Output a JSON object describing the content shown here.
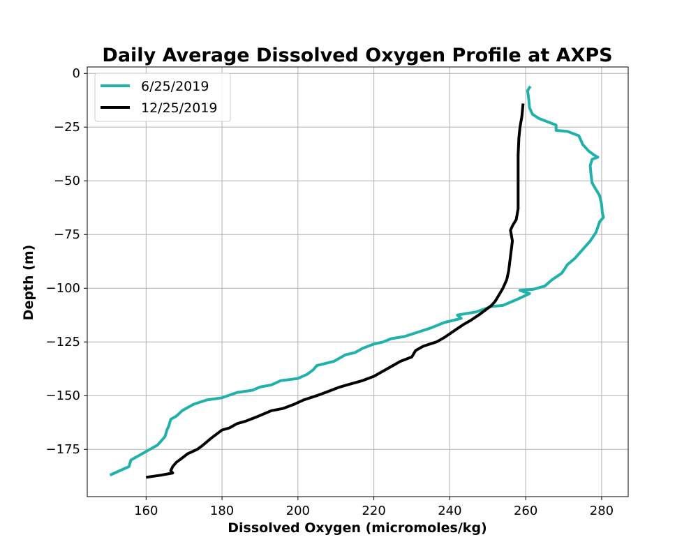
{
  "chart_data": {
    "type": "line",
    "title": "Daily Average Dissolved Oxygen Profile at AXPS",
    "xlabel": "Dissolved Oxygen (micromoles/kg)",
    "ylabel": "Depth (m)",
    "xlim": [
      144.5,
      287.0
    ],
    "ylim": [
      -197.0,
      3.0
    ],
    "xticks": [
      160,
      180,
      200,
      220,
      240,
      260,
      280
    ],
    "yticks": [
      0,
      -25,
      -50,
      -75,
      -100,
      -125,
      -150,
      -175
    ],
    "ytick_labels": [
      "0",
      "−25",
      "−50",
      "−75",
      "−100",
      "−125",
      "−150",
      "−175"
    ],
    "grid": true,
    "legend_position": "top-left",
    "series": [
      {
        "name": "6/25/2019",
        "color": "#20b2aa",
        "points": [
          [
            261.2,
            -6
          ],
          [
            260.5,
            -8
          ],
          [
            260.8,
            -12
          ],
          [
            261.0,
            -16
          ],
          [
            261.8,
            -19
          ],
          [
            263.5,
            -21
          ],
          [
            266.5,
            -23
          ],
          [
            268.0,
            -24
          ],
          [
            268.0,
            -26.5
          ],
          [
            271.0,
            -27
          ],
          [
            274.0,
            -29
          ],
          [
            275.0,
            -33
          ],
          [
            276.5,
            -36
          ],
          [
            278.0,
            -38
          ],
          [
            279.0,
            -39
          ],
          [
            277.5,
            -40
          ],
          [
            277.0,
            -43
          ],
          [
            277.2,
            -47
          ],
          [
            277.5,
            -51
          ],
          [
            278.5,
            -54
          ],
          [
            279.5,
            -57
          ],
          [
            280.0,
            -61
          ],
          [
            280.2,
            -65
          ],
          [
            280.5,
            -67
          ],
          [
            279.5,
            -69
          ],
          [
            278.5,
            -74
          ],
          [
            277.0,
            -78
          ],
          [
            275.0,
            -82
          ],
          [
            273.0,
            -86
          ],
          [
            271.0,
            -89
          ],
          [
            269.5,
            -93
          ],
          [
            267.0,
            -96
          ],
          [
            265.0,
            -99
          ],
          [
            262.0,
            -100.5
          ],
          [
            258.5,
            -101
          ],
          [
            261.0,
            -102.5
          ],
          [
            258.0,
            -105
          ],
          [
            254.0,
            -108
          ],
          [
            251.0,
            -108.5
          ],
          [
            247.0,
            -111
          ],
          [
            242.0,
            -112.5
          ],
          [
            243.0,
            -114
          ],
          [
            238.5,
            -116
          ],
          [
            235.0,
            -118.5
          ],
          [
            231.5,
            -120.5
          ],
          [
            228.0,
            -122.5
          ],
          [
            224.5,
            -123.5
          ],
          [
            222.5,
            -125
          ],
          [
            220.0,
            -126
          ],
          [
            217.0,
            -128
          ],
          [
            215.0,
            -130
          ],
          [
            212.5,
            -131
          ],
          [
            209.5,
            -134
          ],
          [
            205.0,
            -136
          ],
          [
            204.0,
            -138
          ],
          [
            202.5,
            -140
          ],
          [
            200.0,
            -142
          ],
          [
            195.5,
            -143
          ],
          [
            193.0,
            -145
          ],
          [
            190.0,
            -146
          ],
          [
            188.0,
            -147.5
          ],
          [
            184.0,
            -148.5
          ],
          [
            180.0,
            -151
          ],
          [
            176.0,
            -152
          ],
          [
            172.5,
            -154
          ],
          [
            169.5,
            -157
          ],
          [
            168.0,
            -159.5
          ],
          [
            166.5,
            -161
          ],
          [
            166.0,
            -164
          ],
          [
            165.5,
            -166
          ],
          [
            165.0,
            -169
          ],
          [
            164.0,
            -171
          ],
          [
            163.0,
            -173
          ],
          [
            161.0,
            -175
          ],
          [
            159.0,
            -177
          ],
          [
            156.0,
            -180
          ],
          [
            155.5,
            -183
          ],
          [
            153.0,
            -185
          ],
          [
            150.5,
            -187
          ]
        ]
      },
      {
        "name": "12/25/2019",
        "color": "#000000",
        "points": [
          [
            259.3,
            -14
          ],
          [
            259.0,
            -20
          ],
          [
            258.5,
            -25
          ],
          [
            258.2,
            -30
          ],
          [
            258.0,
            -38
          ],
          [
            258.0,
            -45
          ],
          [
            258.0,
            -55
          ],
          [
            258.0,
            -63
          ],
          [
            257.5,
            -68
          ],
          [
            256.5,
            -71
          ],
          [
            256.0,
            -73
          ],
          [
            256.5,
            -78
          ],
          [
            256.0,
            -85
          ],
          [
            255.5,
            -92
          ],
          [
            255.0,
            -96
          ],
          [
            254.0,
            -100
          ],
          [
            253.0,
            -103
          ],
          [
            252.0,
            -106
          ],
          [
            251.0,
            -108
          ],
          [
            249.5,
            -110
          ],
          [
            248.0,
            -112
          ],
          [
            245.5,
            -115
          ],
          [
            243.5,
            -117
          ],
          [
            241.0,
            -120
          ],
          [
            238.5,
            -123
          ],
          [
            236.5,
            -125
          ],
          [
            233.0,
            -127
          ],
          [
            231.0,
            -129
          ],
          [
            230.0,
            -132
          ],
          [
            227.0,
            -134
          ],
          [
            224.0,
            -137
          ],
          [
            222.0,
            -139
          ],
          [
            220.0,
            -141
          ],
          [
            217.0,
            -143
          ],
          [
            213.0,
            -145
          ],
          [
            211.0,
            -146
          ],
          [
            208.0,
            -148
          ],
          [
            205.0,
            -150
          ],
          [
            201.5,
            -152
          ],
          [
            199.0,
            -154
          ],
          [
            196.0,
            -156
          ],
          [
            193.0,
            -157
          ],
          [
            189.0,
            -160
          ],
          [
            186.0,
            -162
          ],
          [
            184.0,
            -163
          ],
          [
            182.0,
            -165
          ],
          [
            180.0,
            -166
          ],
          [
            178.5,
            -168
          ],
          [
            177.0,
            -170
          ],
          [
            175.0,
            -173
          ],
          [
            173.5,
            -175
          ],
          [
            171.0,
            -177
          ],
          [
            169.5,
            -179
          ],
          [
            168.0,
            -181
          ],
          [
            167.0,
            -183
          ],
          [
            166.5,
            -185
          ],
          [
            167.0,
            -186
          ],
          [
            164.0,
            -187
          ],
          [
            160.0,
            -188
          ]
        ]
      }
    ]
  }
}
